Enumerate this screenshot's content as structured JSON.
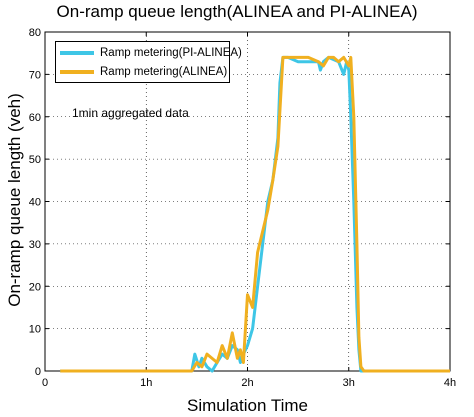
{
  "chart_data": {
    "type": "line",
    "title": "On-ramp queue length(ALINEA and PI-ALINEA)",
    "xlabel": "Simulation Time",
    "ylabel": "On-ramp queue length (veh)",
    "xlim": [
      0,
      4
    ],
    "ylim": [
      0,
      80
    ],
    "x_ticks": [
      "0",
      "1h",
      "2h",
      "3h",
      "4h"
    ],
    "y_ticks": [
      0,
      10,
      20,
      30,
      40,
      50,
      60,
      70,
      80
    ],
    "grid": true,
    "legend_position": "top-left",
    "annotation": "1min aggregated data",
    "series": [
      {
        "name": "Ramp metering(PI-ALINEA)",
        "color": "#3ec6e6",
        "x": [
          0.15,
          1.45,
          1.48,
          1.52,
          1.55,
          1.6,
          1.65,
          1.7,
          1.75,
          1.8,
          1.85,
          1.9,
          1.93,
          1.96,
          2.0,
          2.05,
          2.1,
          2.15,
          2.2,
          2.25,
          2.3,
          2.32,
          2.35,
          2.4,
          2.5,
          2.6,
          2.7,
          2.72,
          2.75,
          2.8,
          2.9,
          2.95,
          2.98,
          3.0,
          3.02,
          3.05,
          3.08,
          3.1,
          3.12,
          3.15,
          3.2,
          4.0
        ],
        "y": [
          0,
          0,
          4,
          1,
          3,
          1,
          0,
          2,
          4,
          3,
          6,
          5,
          2,
          4,
          6,
          10,
          20,
          30,
          40,
          45,
          55,
          68,
          74,
          74,
          73,
          73,
          73,
          71,
          73,
          74,
          73,
          70,
          73,
          71,
          60,
          40,
          15,
          5,
          0,
          0,
          0,
          0
        ]
      },
      {
        "name": "Ramp metering(ALINEA)",
        "color": "#f0b020",
        "x": [
          0.15,
          1.45,
          1.5,
          1.55,
          1.6,
          1.7,
          1.75,
          1.8,
          1.85,
          1.9,
          1.93,
          1.96,
          2.0,
          2.05,
          2.1,
          2.15,
          2.2,
          2.25,
          2.3,
          2.35,
          2.4,
          2.5,
          2.6,
          2.7,
          2.75,
          2.8,
          2.85,
          2.9,
          2.95,
          3.0,
          3.02,
          3.05,
          3.08,
          3.1,
          3.12,
          3.15,
          4.0
        ],
        "y": [
          0,
          0,
          2,
          1,
          4,
          2,
          6,
          3,
          9,
          3,
          5,
          2,
          18,
          15,
          28,
          33,
          38,
          45,
          53,
          74,
          74,
          74,
          74,
          73,
          72,
          74,
          74,
          73,
          74,
          72,
          74,
          60,
          30,
          8,
          1,
          0,
          0
        ]
      }
    ]
  }
}
